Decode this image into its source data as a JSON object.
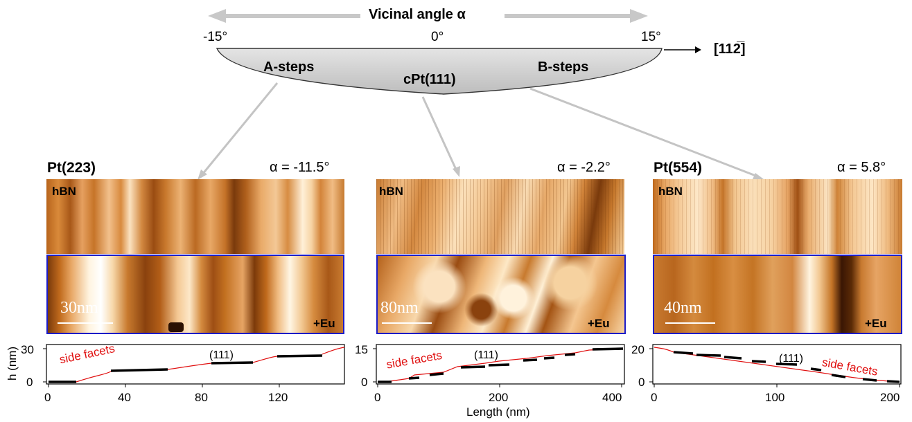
{
  "header": {
    "vicinal_label": "Vicinal angle α",
    "angle_left": "-15°",
    "angle_mid": "0°",
    "angle_right": "15°",
    "direction_label": "[112̅]",
    "a_steps": "A-steps",
    "b_steps": "B-steps",
    "crystal": "cPt(111)"
  },
  "panels": [
    {
      "title": "Pt(223)",
      "alpha": "α = -11.5°",
      "top_label": "hBN",
      "bottom_label": "+Eu",
      "scalebar": "30nm",
      "profile": {
        "ylabel": "h (nm)",
        "yticks": [
          "0",
          "30"
        ],
        "xticks": [
          "0",
          "40",
          "80",
          "120"
        ],
        "facet_label": "side facets",
        "terrace_label": "(111)"
      }
    },
    {
      "title": "",
      "alpha": "α = -2.2°",
      "top_label": "hBN",
      "bottom_label": "+Eu",
      "scalebar": "80nm",
      "profile": {
        "yticks": [
          "0",
          "15"
        ],
        "xticks": [
          "0",
          "200",
          "400"
        ],
        "xlabel": "Length (nm)",
        "facet_label": "side facets",
        "terrace_label": "(111)"
      }
    },
    {
      "title": "Pt(554)",
      "alpha": "α = 5.8°",
      "top_label": "hBN",
      "bottom_label": "+Eu",
      "scalebar": "40nm",
      "profile": {
        "yticks": [
          "0",
          "20"
        ],
        "xticks": [
          "0",
          "100",
          "200"
        ],
        "facet_label": "side facets",
        "terrace_label": "(111)"
      }
    }
  ],
  "colors": {
    "stm_dark": "#5a2a06",
    "stm_mid": "#c06a1c",
    "stm_light": "#fff6e4",
    "frame_blue": "#1c1cc8",
    "facet_red": "#e01010",
    "arrow_grey": "#c8c8c8",
    "crystal_grey": "#cfcfcf"
  }
}
